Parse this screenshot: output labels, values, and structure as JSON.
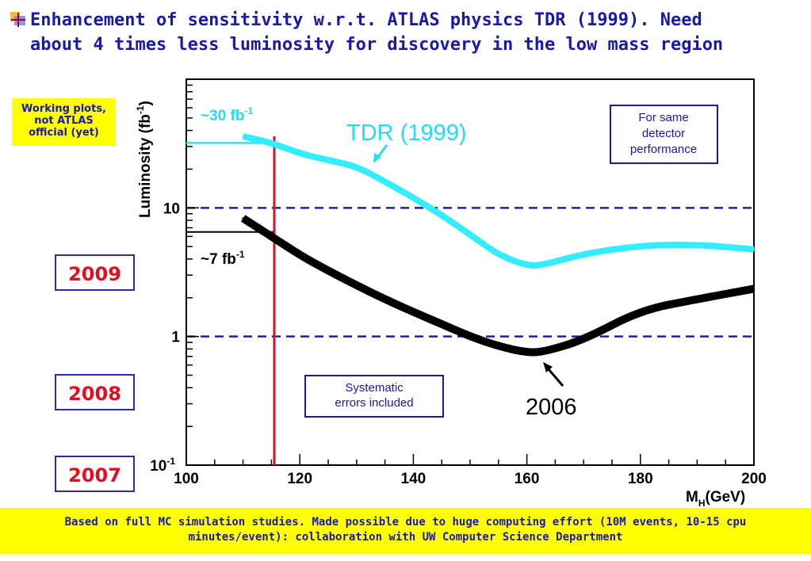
{
  "title": {
    "line1": "Enhancement of sensitivity w.r.t. ATLAS physics TDR (1999). Need",
    "line2": "about 4 times less luminosity for discovery in the low mass region"
  },
  "note": {
    "line1": "Working plots,",
    "line2": "not ATLAS",
    "line3": "official (yet)"
  },
  "years": [
    "2009",
    "2008",
    "2007"
  ],
  "footer": {
    "line1": "Based on full MC simulation studies. Made possible due to huge computing effort (10M events, 10-15 cpu",
    "line2": "minutes/event): collaboration with UW Computer Science Department"
  },
  "colors": {
    "tdr": "#33eeff",
    "y2006": "#000000",
    "cut": "#e0102a",
    "dash": "#2020a0",
    "accent": "#1a1aa8"
  },
  "chart_data": {
    "type": "line",
    "xlabel": "M",
    "xlabel_sub": "H",
    "xlabel_unit": "(GeV)",
    "ylabel": "Luminosity (fb",
    "ylabel_sup": "-1",
    "ylabel_close": ")",
    "xlim": [
      100,
      200
    ],
    "ylim": [
      0.1,
      100
    ],
    "yscale": "log",
    "x_ticks": [
      "100",
      "120",
      "140",
      "160",
      "180",
      "200"
    ],
    "y_ticks": [
      {
        "value": 10,
        "label": "10",
        "sup": ""
      },
      {
        "value": 1,
        "label": "1",
        "sup": ""
      },
      {
        "value": 0.1,
        "label": "10",
        "sup": "-1"
      }
    ],
    "series": [
      {
        "name": "TDR (1999)",
        "x": [
          110,
          115,
          120,
          125,
          130,
          135,
          140,
          145,
          150,
          155,
          160,
          163,
          170,
          180,
          190,
          200
        ],
        "y": [
          36,
          32,
          26.5,
          23.5,
          21,
          16,
          12,
          8.8,
          6.2,
          4.3,
          3.55,
          3.6,
          4.4,
          5.1,
          5.2,
          4.75
        ]
      },
      {
        "name": "2006",
        "x": [
          110,
          115,
          120,
          125,
          130,
          135,
          140,
          145,
          150,
          155,
          160,
          163,
          170,
          180,
          190,
          200
        ],
        "y": [
          8.3,
          6.0,
          4.3,
          3.25,
          2.5,
          1.95,
          1.55,
          1.25,
          1.0,
          0.84,
          0.75,
          0.76,
          0.94,
          1.6,
          1.95,
          2.35
        ]
      }
    ],
    "hlines": [
      10,
      1
    ],
    "vline": 115.5,
    "annotations": {
      "tdr_label": "TDR (1999)",
      "label_2006": "2006",
      "lum30": "~30 fb",
      "lum7": "~7 fb",
      "sup": "-1",
      "box1": [
        "For same",
        "detector",
        "performance"
      ],
      "box2": [
        "Systematic",
        "errors included"
      ]
    },
    "ref_levels": {
      "tdr": 32,
      "y2006": 6.5
    }
  }
}
